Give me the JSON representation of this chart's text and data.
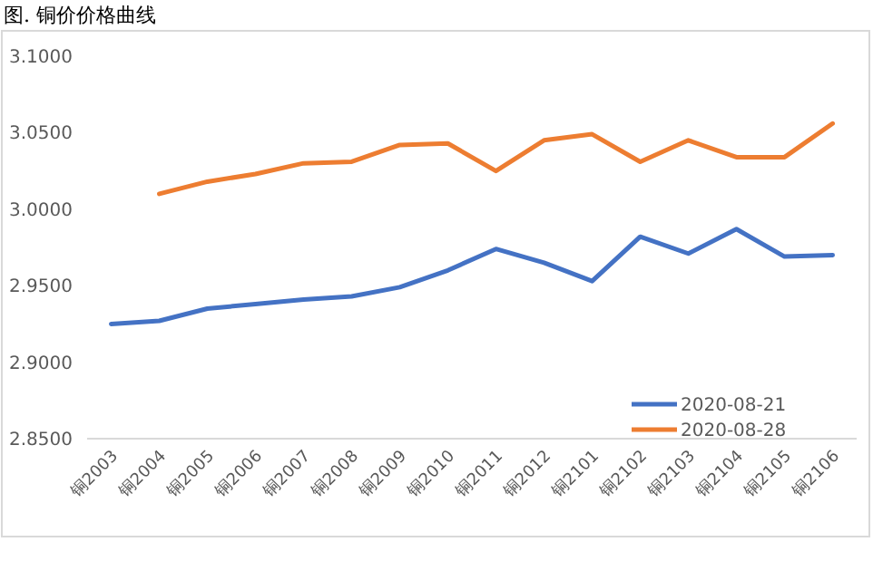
{
  "chart_data": {
    "type": "line",
    "title": "图. 铜价价格曲线",
    "categories": [
      "铜2003",
      "铜2004",
      "铜2005",
      "铜2006",
      "铜2007",
      "铜2008",
      "铜2009",
      "铜2010",
      "铜2011",
      "铜2012",
      "铜2101",
      "铜2102",
      "铜2103",
      "铜2104",
      "铜2105",
      "铜2106"
    ],
    "series": [
      {
        "name": "2020-08-21",
        "color": "#4472c4",
        "values": [
          2.925,
          2.927,
          2.935,
          2.938,
          2.941,
          2.943,
          2.949,
          2.96,
          2.974,
          2.965,
          2.953,
          2.982,
          2.971,
          2.987,
          2.969,
          2.97
        ]
      },
      {
        "name": "2020-08-28",
        "color": "#ed7d31",
        "values": [
          null,
          3.01,
          3.018,
          3.023,
          3.03,
          3.031,
          3.042,
          3.043,
          3.025,
          3.045,
          3.049,
          3.031,
          3.045,
          3.034,
          3.034,
          3.056
        ]
      }
    ],
    "ylim": [
      2.85,
      3.1
    ],
    "yticks": [
      {
        "value": 2.85,
        "label": "2.8500"
      },
      {
        "value": 2.9,
        "label": "2.9000"
      },
      {
        "value": 2.95,
        "label": "2.9500"
      },
      {
        "value": 3.0,
        "label": "3.0000"
      },
      {
        "value": 3.05,
        "label": "3.0500"
      },
      {
        "value": 3.1,
        "label": "3.1000"
      }
    ],
    "legend": "bottom right",
    "marker": "none",
    "line_style": "solid"
  }
}
